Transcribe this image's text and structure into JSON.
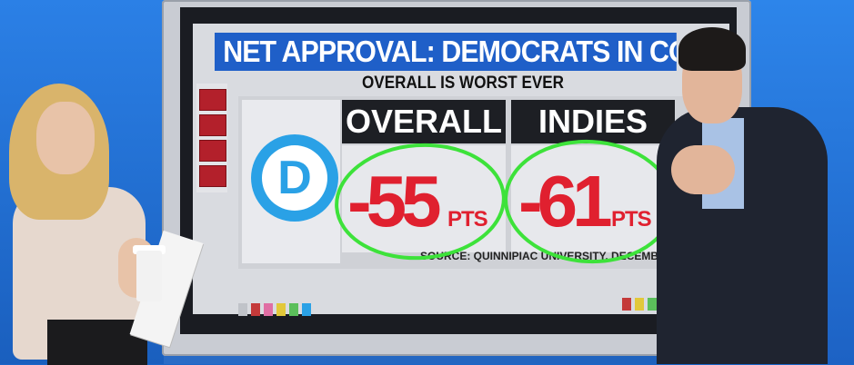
{
  "graphic": {
    "headline": "NET APPROVAL: DEMOCRATS IN CONGRES",
    "subhead": "OVERALL IS WORST EVER",
    "columns": [
      {
        "label": "OVERALL",
        "value": "-55",
        "unit": "PTS"
      },
      {
        "label": "INDIES",
        "value": "-61",
        "unit": "PTS"
      }
    ],
    "source": "SOURCE: QUINNIPIAC UNIVERSITY, DECEMBER",
    "logo_letter": "D"
  },
  "colors": {
    "headline_bg": "#1f5fc8",
    "value_red": "#e0202f",
    "annotation_green": "#3de23a",
    "logo_blue": "#2aa1e6"
  },
  "icons": [
    "democratic-party-logo",
    "coffee-cup"
  ]
}
